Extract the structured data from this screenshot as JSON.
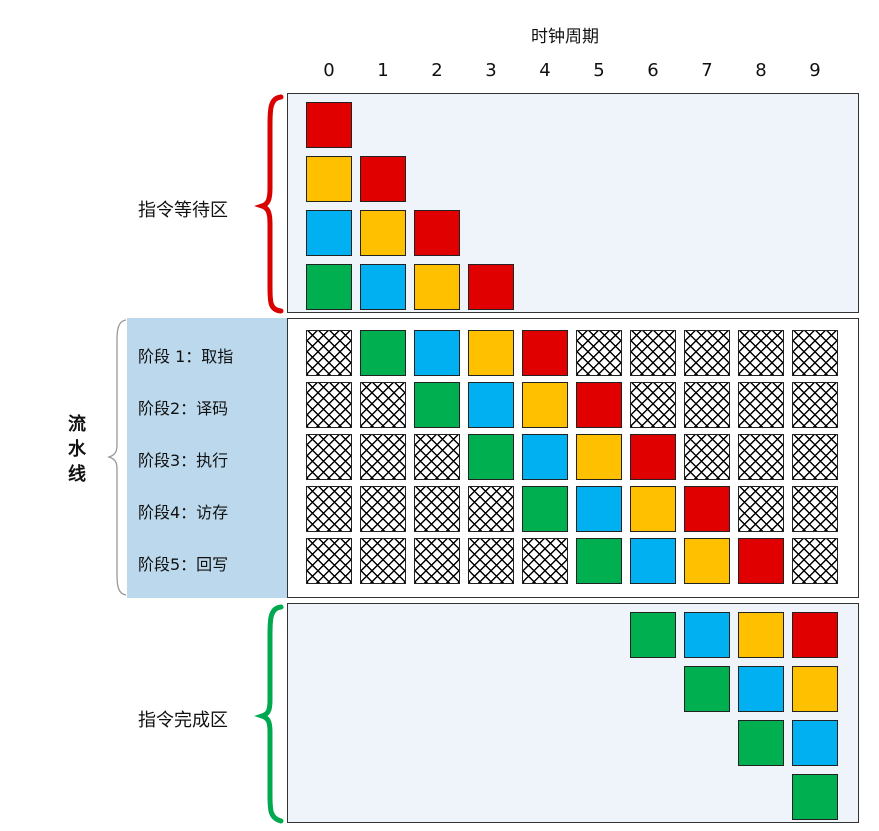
{
  "clock": {
    "title": "时钟周期",
    "numbers": [
      "0",
      "1",
      "2",
      "3",
      "4",
      "5",
      "6",
      "7",
      "8",
      "9"
    ]
  },
  "zones": {
    "waiting": "指令等待区",
    "pipeline": "流水线",
    "completed": "指令完成区"
  },
  "stages": [
    "阶段 1：取指",
    "阶段2：译码",
    "阶段3：执行",
    "阶段4：访存",
    "阶段5：回写"
  ],
  "colors": {
    "red": "#e00000",
    "yellow": "#ffc000",
    "blue": "#00b0f0",
    "green": "#00b050",
    "zone_waiting": "#d90000",
    "zone_completed": "#00a84f",
    "panel_bg": "#eff3fa",
    "stage_band": "#bcd8ec"
  },
  "waiting_area": [
    [
      "red"
    ],
    [
      "yellow",
      "red"
    ],
    [
      "blue",
      "yellow",
      "red"
    ],
    [
      "green",
      "blue",
      "yellow",
      "red"
    ]
  ],
  "pipeline_grid": [
    [
      "empty",
      "green",
      "blue",
      "yellow",
      "red",
      "empty",
      "empty",
      "empty",
      "empty",
      "empty"
    ],
    [
      "empty",
      "empty",
      "green",
      "blue",
      "yellow",
      "red",
      "empty",
      "empty",
      "empty",
      "empty"
    ],
    [
      "empty",
      "empty",
      "empty",
      "green",
      "blue",
      "yellow",
      "red",
      "empty",
      "empty",
      "empty"
    ],
    [
      "empty",
      "empty",
      "empty",
      "empty",
      "green",
      "blue",
      "yellow",
      "red",
      "empty",
      "empty"
    ],
    [
      "empty",
      "empty",
      "empty",
      "empty",
      "empty",
      "green",
      "blue",
      "yellow",
      "red",
      "empty"
    ]
  ],
  "completed_area": [
    [
      "green",
      "blue",
      "yellow",
      "red"
    ],
    [
      "green",
      "blue",
      "yellow"
    ],
    [
      "green",
      "blue"
    ],
    [
      "green"
    ]
  ]
}
